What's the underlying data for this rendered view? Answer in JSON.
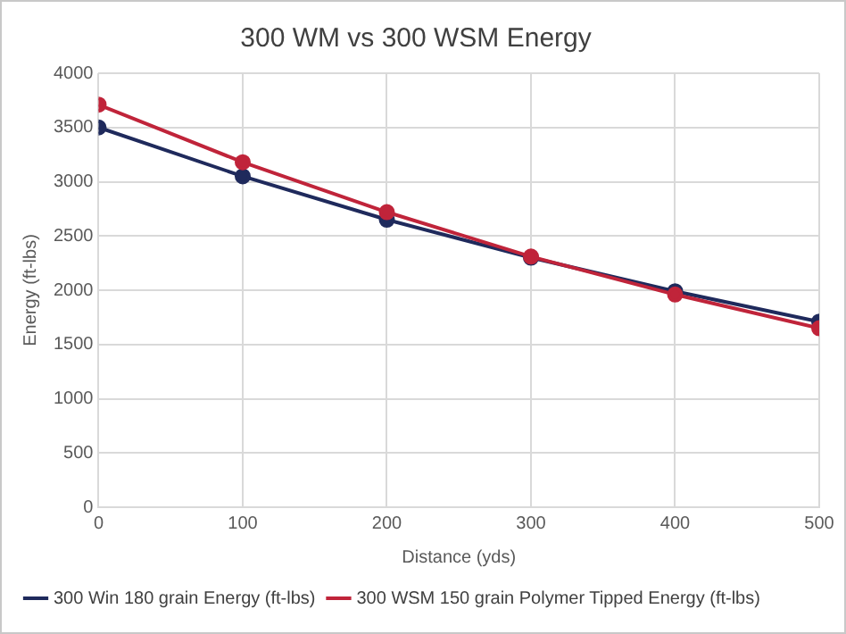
{
  "chart_data": {
    "type": "line",
    "title": "300 WM vs 300 WSM Energy",
    "xlabel": "Distance (yds)",
    "ylabel": "Energy (ft-lbs)",
    "x": [
      0,
      100,
      200,
      300,
      400,
      500
    ],
    "xlim": [
      0,
      500
    ],
    "xticks": [
      0,
      100,
      200,
      300,
      400,
      500
    ],
    "ylim": [
      0,
      4000
    ],
    "yticks": [
      0,
      500,
      1000,
      1500,
      2000,
      2500,
      3000,
      3500,
      4000
    ],
    "series": [
      {
        "name": "300 Win 180 grain Energy (ft-lbs)",
        "color": "#1f2a5c",
        "values": [
          3500,
          3050,
          2650,
          2300,
          1990,
          1710
        ]
      },
      {
        "name": "300 WSM 150 grain Polymer Tipped Energy (ft-lbs)",
        "color": "#c0243a",
        "values": [
          3710,
          3180,
          2720,
          2310,
          1960,
          1650
        ]
      }
    ],
    "grid": true,
    "legend": "bottom",
    "marker": "circle",
    "line_style": "solid"
  }
}
